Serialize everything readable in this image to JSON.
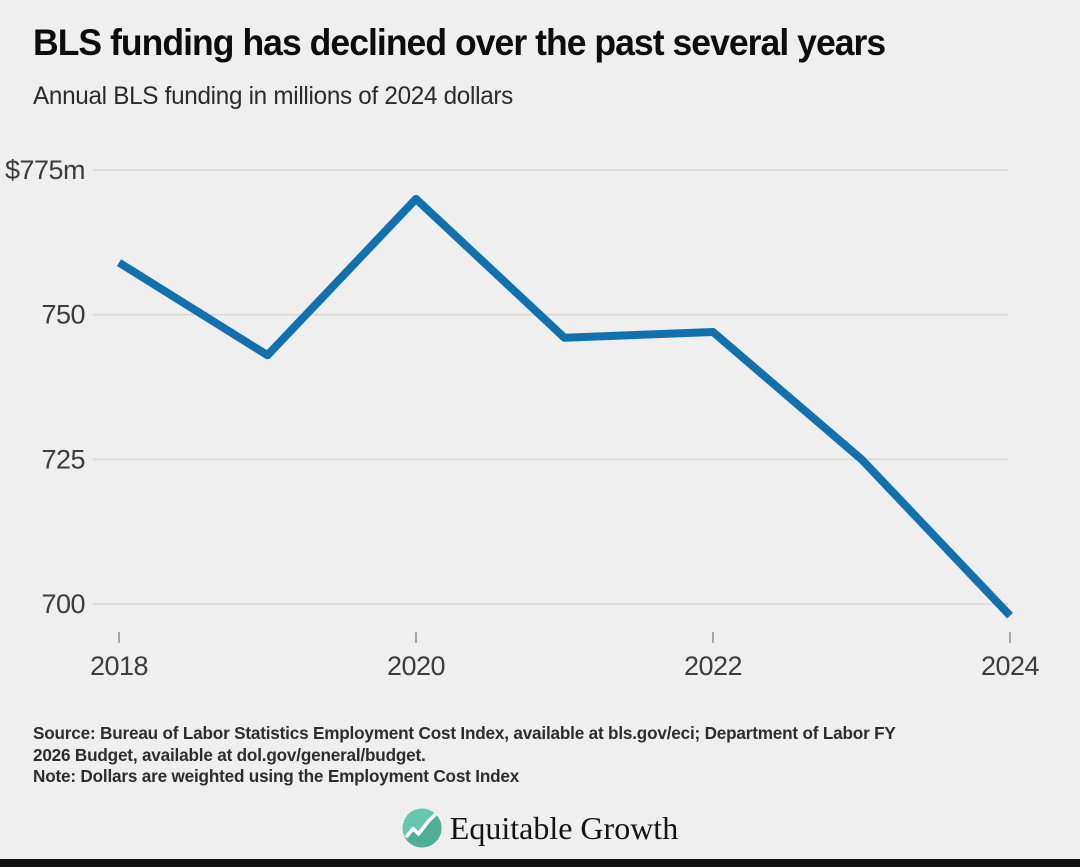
{
  "chart_data": {
    "type": "line",
    "title": "BLS funding has declined over the past several years",
    "subtitle": "Annual BLS funding in millions of 2024 dollars",
    "x": [
      2018,
      2019,
      2020,
      2021,
      2022,
      2023,
      2024
    ],
    "series": [
      {
        "name": "Annual BLS funding, millions of 2024 dollars",
        "values": [
          759,
          743,
          770,
          746,
          747,
          725,
          698
        ]
      }
    ],
    "xlim": [
      2018,
      2024
    ],
    "ylim": [
      695,
      778
    ],
    "xticks": [
      2018,
      2020,
      2022,
      2024
    ],
    "xtick_labels": [
      "2018",
      "2020",
      "2022",
      "2024"
    ],
    "yticks": [
      775,
      750,
      725,
      700
    ],
    "ytick_labels": [
      "$775m",
      "750",
      "725",
      "700"
    ],
    "grid": "horizontal-only",
    "legend": "none",
    "line_color": "#1170ad"
  },
  "footer": {
    "source_line1": "Source: Bureau of Labor Statistics Employment Cost Index, available at bls.gov/eci; Department of Labor FY",
    "source_line2": "2026 Budget, available at dol.gov/general/budget.",
    "note": "Note: Dollars are weighted using the Employment Cost Index",
    "logo_text": "Equitable Growth"
  },
  "colors": {
    "background": "#efefef",
    "line": "#1170ad",
    "gridline": "#d9d9d9",
    "tick_text": "#3c3c3c",
    "tick_mark": "#a6a6a6",
    "title_text": "#0d0d0d",
    "logo_teal_light": "#67c6ad",
    "logo_teal_dark": "#4fae95",
    "logo_line_white": "#ffffff",
    "bottom_bar": "#111111"
  }
}
